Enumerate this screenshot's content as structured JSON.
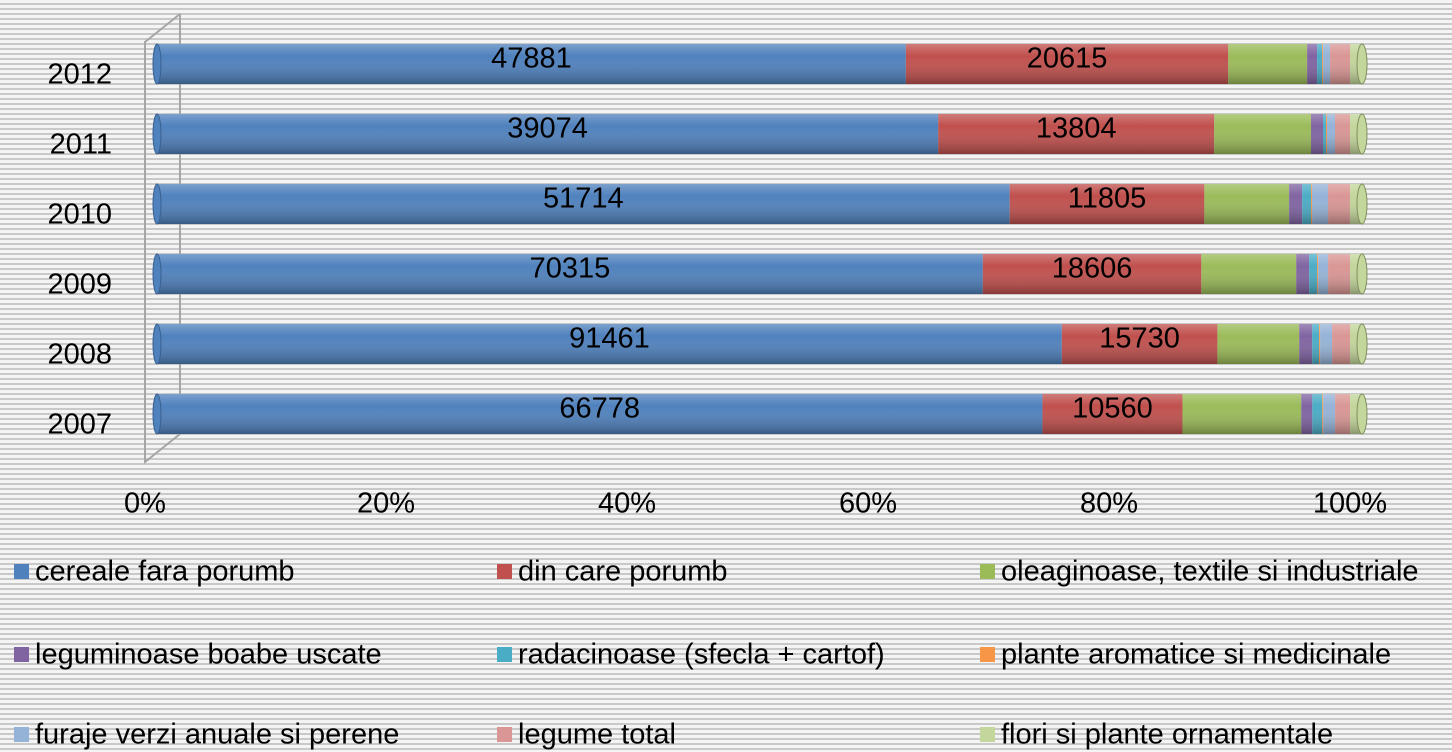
{
  "chart_data": {
    "type": "bar",
    "orientation": "horizontal",
    "stacking": "percent",
    "categories": [
      "2012",
      "2011",
      "2010",
      "2009",
      "2008",
      "2007"
    ],
    "xlim": [
      0,
      100
    ],
    "xticks": [
      {
        "value": 0,
        "label": "0%"
      },
      {
        "value": 20,
        "label": "20%"
      },
      {
        "value": 40,
        "label": "40%"
      },
      {
        "value": 60,
        "label": "60%"
      },
      {
        "value": 80,
        "label": "80%"
      },
      {
        "value": 100,
        "label": "100%"
      }
    ],
    "legend": "bottom",
    "series": [
      {
        "name": "cereale fara porumb",
        "color": "#4f81bd",
        "show_labels": true,
        "values": [
          47881,
          39074,
          51714,
          70315,
          91461,
          66778
        ]
      },
      {
        "name": "din care porumb",
        "color": "#c0504d",
        "show_labels": true,
        "values": [
          20615,
          13804,
          11805,
          18606,
          15730,
          10560
        ]
      },
      {
        "name": "oleaginoase, textile si industriale",
        "color": "#9bbb59",
        "values": [
          5040,
          4840,
          5140,
          8080,
          8270,
          8960
        ]
      },
      {
        "name": "leguminoase boabe uscate",
        "color": "#8064a2",
        "values": [
          640,
          600,
          790,
          1100,
          1310,
          830
        ]
      },
      {
        "name": "radacinoase (sfecla + cartof)",
        "color": "#4bacc6",
        "values": [
          320,
          150,
          540,
          680,
          700,
          750
        ]
      },
      {
        "name": "plante aromatice si medicinale",
        "color": "#f79646",
        "values": [
          60,
          50,
          60,
          80,
          100,
          70
        ]
      },
      {
        "name": "furaje verzi anuale si perene",
        "color": "#95b3d7",
        "values": [
          450,
          400,
          970,
          850,
          1210,
          900
        ]
      },
      {
        "name": "legume total",
        "color": "#d99694",
        "values": [
          1275,
          750,
          1330,
          1870,
          1815,
          1130
        ]
      },
      {
        "name": "flori si plante ornamentale",
        "color": "#c3d69b",
        "values": [
          765,
          600,
          730,
          1020,
          1210,
          900
        ]
      }
    ]
  }
}
